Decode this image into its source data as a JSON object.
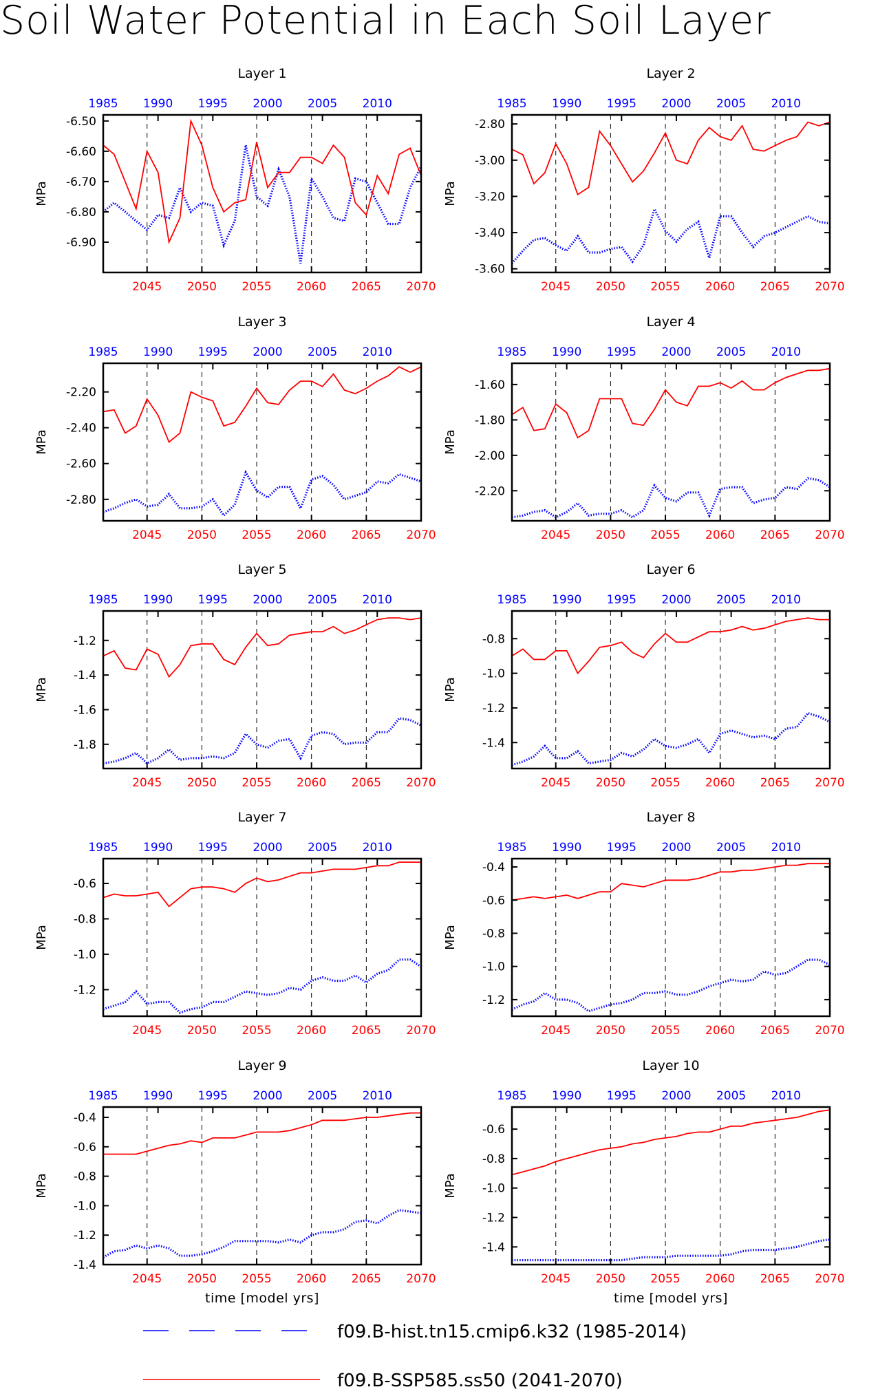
{
  "figure": {
    "title": "Soil Water Potential in Each Soil Layer",
    "xlabel": "time [model yrs]",
    "ylabel": "MPa",
    "colors": {
      "hist": "#0000ff",
      "ssp": "#ff0000",
      "axis": "#000000"
    }
  },
  "legend": [
    {
      "label": "f09.B-hist.tn15.cmip6.k32 (1985-2014)",
      "color": "#0000ff",
      "style": "dashed"
    },
    {
      "label": "f09.B-SSP585.ss50 (2041-2070)",
      "color": "#ff0000",
      "style": "solid"
    }
  ],
  "chart_data": [
    {
      "type": "line",
      "title": "Layer 1",
      "top_xticks": [
        "1985",
        "1990",
        "1995",
        "2000",
        "2005",
        "2010"
      ],
      "bottom_xticks": [
        "2045",
        "2050",
        "2055",
        "2060",
        "2065",
        "2070"
      ],
      "yticks": [
        "-6.50",
        "-6.60",
        "-6.70",
        "-6.80",
        "-6.90"
      ],
      "ylim": [
        -7.0,
        -6.48
      ],
      "series": [
        {
          "key": "hist",
          "x_range": [
            1985,
            2014
          ],
          "values": [
            -6.8,
            -6.77,
            -6.8,
            -6.83,
            -6.86,
            -6.81,
            -6.82,
            -6.72,
            -6.8,
            -6.77,
            -6.78,
            -6.91,
            -6.83,
            -6.58,
            -6.75,
            -6.78,
            -6.66,
            -6.75,
            -6.97,
            -6.69,
            -6.75,
            -6.82,
            -6.83,
            -6.69,
            -6.7,
            -6.77,
            -6.84,
            -6.84,
            -6.72,
            -6.65
          ]
        },
        {
          "key": "ssp",
          "x_range": [
            2041,
            2070
          ],
          "values": [
            -6.58,
            -6.61,
            -6.7,
            -6.79,
            -6.6,
            -6.67,
            -6.9,
            -6.82,
            -6.5,
            -6.58,
            -6.72,
            -6.8,
            -6.77,
            -6.76,
            -6.57,
            -6.72,
            -6.67,
            -6.67,
            -6.62,
            -6.62,
            -6.64,
            -6.58,
            -6.62,
            -6.77,
            -6.81,
            -6.68,
            -6.74,
            -6.61,
            -6.59,
            -6.68
          ]
        }
      ]
    },
    {
      "type": "line",
      "title": "Layer 2",
      "top_xticks": [
        "1985",
        "1990",
        "1995",
        "2000",
        "2005",
        "2010"
      ],
      "bottom_xticks": [
        "2045",
        "2050",
        "2055",
        "2060",
        "2065",
        "2070"
      ],
      "yticks": [
        "-2.80",
        "-3.00",
        "-3.20",
        "-3.40",
        "-3.60"
      ],
      "ylim": [
        -3.62,
        -2.75
      ],
      "series": [
        {
          "key": "hist",
          "x_range": [
            1985,
            2014
          ],
          "values": [
            -3.57,
            -3.5,
            -3.44,
            -3.43,
            -3.47,
            -3.5,
            -3.42,
            -3.51,
            -3.51,
            -3.49,
            -3.48,
            -3.56,
            -3.47,
            -3.27,
            -3.39,
            -3.45,
            -3.38,
            -3.34,
            -3.54,
            -3.31,
            -3.31,
            -3.4,
            -3.48,
            -3.42,
            -3.4,
            -3.37,
            -3.34,
            -3.31,
            -3.34,
            -3.35
          ]
        },
        {
          "key": "ssp",
          "x_range": [
            2041,
            2070
          ],
          "values": [
            -2.94,
            -2.97,
            -3.13,
            -3.07,
            -2.91,
            -3.02,
            -3.19,
            -3.15,
            -2.84,
            -2.92,
            -3.02,
            -3.12,
            -3.06,
            -2.96,
            -2.85,
            -3.0,
            -3.02,
            -2.89,
            -2.82,
            -2.87,
            -2.89,
            -2.81,
            -2.94,
            -2.95,
            -2.92,
            -2.89,
            -2.87,
            -2.79,
            -2.81,
            -2.79
          ]
        }
      ]
    },
    {
      "type": "line",
      "title": "Layer 3",
      "top_xticks": [
        "1985",
        "1990",
        "1995",
        "2000",
        "2005",
        "2010"
      ],
      "bottom_xticks": [
        "2045",
        "2050",
        "2055",
        "2060",
        "2065",
        "2070"
      ],
      "yticks": [
        "-2.20",
        "-2.40",
        "-2.60",
        "-2.80"
      ],
      "ylim": [
        -2.92,
        -2.04
      ],
      "series": [
        {
          "key": "hist",
          "x_range": [
            1985,
            2014
          ],
          "values": [
            -2.87,
            -2.85,
            -2.82,
            -2.8,
            -2.84,
            -2.83,
            -2.77,
            -2.85,
            -2.85,
            -2.84,
            -2.8,
            -2.89,
            -2.83,
            -2.65,
            -2.75,
            -2.79,
            -2.73,
            -2.73,
            -2.85,
            -2.69,
            -2.67,
            -2.72,
            -2.8,
            -2.78,
            -2.76,
            -2.7,
            -2.71,
            -2.66,
            -2.68,
            -2.7
          ]
        },
        {
          "key": "ssp",
          "x_range": [
            2041,
            2070
          ],
          "values": [
            -2.31,
            -2.3,
            -2.43,
            -2.39,
            -2.24,
            -2.33,
            -2.48,
            -2.43,
            -2.2,
            -2.23,
            -2.25,
            -2.39,
            -2.37,
            -2.28,
            -2.18,
            -2.26,
            -2.27,
            -2.19,
            -2.14,
            -2.14,
            -2.17,
            -2.1,
            -2.19,
            -2.21,
            -2.18,
            -2.14,
            -2.11,
            -2.06,
            -2.09,
            -2.06
          ]
        }
      ]
    },
    {
      "type": "line",
      "title": "Layer 4",
      "top_xticks": [
        "1985",
        "1990",
        "1995",
        "2000",
        "2005",
        "2010"
      ],
      "bottom_xticks": [
        "2045",
        "2050",
        "2055",
        "2060",
        "2065",
        "2070"
      ],
      "yticks": [
        "-1.60",
        "-1.80",
        "-2.00",
        "-2.20"
      ],
      "ylim": [
        -2.37,
        -1.48
      ],
      "series": [
        {
          "key": "hist",
          "x_range": [
            1985,
            2014
          ],
          "values": [
            -2.35,
            -2.34,
            -2.32,
            -2.31,
            -2.35,
            -2.32,
            -2.27,
            -2.34,
            -2.33,
            -2.33,
            -2.31,
            -2.35,
            -2.31,
            -2.17,
            -2.24,
            -2.26,
            -2.21,
            -2.21,
            -2.34,
            -2.19,
            -2.18,
            -2.18,
            -2.27,
            -2.25,
            -2.24,
            -2.18,
            -2.19,
            -2.13,
            -2.14,
            -2.18
          ]
        },
        {
          "key": "ssp",
          "x_range": [
            2041,
            2070
          ],
          "values": [
            -1.77,
            -1.73,
            -1.86,
            -1.85,
            -1.71,
            -1.76,
            -1.9,
            -1.86,
            -1.68,
            -1.68,
            -1.68,
            -1.82,
            -1.83,
            -1.74,
            -1.63,
            -1.7,
            -1.72,
            -1.61,
            -1.61,
            -1.59,
            -1.62,
            -1.58,
            -1.63,
            -1.63,
            -1.59,
            -1.56,
            -1.54,
            -1.52,
            -1.52,
            -1.51
          ]
        }
      ]
    },
    {
      "type": "line",
      "title": "Layer 5",
      "top_xticks": [
        "1985",
        "1990",
        "1995",
        "2000",
        "2005",
        "2010"
      ],
      "bottom_xticks": [
        "2045",
        "2050",
        "2055",
        "2060",
        "2065",
        "2070"
      ],
      "yticks": [
        "-1.2",
        "-1.4",
        "-1.6",
        "-1.8"
      ],
      "ylim": [
        -1.94,
        -1.03
      ],
      "series": [
        {
          "key": "hist",
          "x_range": [
            1985,
            2014
          ],
          "values": [
            -1.91,
            -1.9,
            -1.88,
            -1.85,
            -1.91,
            -1.88,
            -1.83,
            -1.89,
            -1.88,
            -1.88,
            -1.87,
            -1.88,
            -1.85,
            -1.74,
            -1.8,
            -1.82,
            -1.78,
            -1.77,
            -1.88,
            -1.75,
            -1.73,
            -1.74,
            -1.8,
            -1.79,
            -1.79,
            -1.73,
            -1.73,
            -1.65,
            -1.66,
            -1.69
          ]
        },
        {
          "key": "ssp",
          "x_range": [
            2041,
            2070
          ],
          "values": [
            -1.29,
            -1.26,
            -1.36,
            -1.37,
            -1.25,
            -1.28,
            -1.41,
            -1.34,
            -1.23,
            -1.22,
            -1.22,
            -1.31,
            -1.34,
            -1.24,
            -1.16,
            -1.23,
            -1.22,
            -1.17,
            -1.16,
            -1.15,
            -1.15,
            -1.12,
            -1.16,
            -1.14,
            -1.11,
            -1.08,
            -1.07,
            -1.07,
            -1.08,
            -1.07
          ]
        }
      ]
    },
    {
      "type": "line",
      "title": "Layer 6",
      "top_xticks": [
        "1985",
        "1990",
        "1995",
        "2000",
        "2005",
        "2010"
      ],
      "bottom_xticks": [
        "2045",
        "2050",
        "2055",
        "2060",
        "2065",
        "2070"
      ],
      "yticks": [
        "-0.8",
        "-1.0",
        "-1.2",
        "-1.4"
      ],
      "ylim": [
        -1.55,
        -0.64
      ],
      "series": [
        {
          "key": "hist",
          "x_range": [
            1985,
            2014
          ],
          "values": [
            -1.53,
            -1.51,
            -1.48,
            -1.42,
            -1.49,
            -1.49,
            -1.45,
            -1.52,
            -1.51,
            -1.5,
            -1.46,
            -1.48,
            -1.44,
            -1.38,
            -1.42,
            -1.43,
            -1.41,
            -1.38,
            -1.46,
            -1.35,
            -1.33,
            -1.35,
            -1.37,
            -1.36,
            -1.38,
            -1.32,
            -1.31,
            -1.23,
            -1.25,
            -1.28
          ]
        },
        {
          "key": "ssp",
          "x_range": [
            2041,
            2070
          ],
          "values": [
            -0.9,
            -0.86,
            -0.92,
            -0.92,
            -0.87,
            -0.87,
            -1.0,
            -0.93,
            -0.85,
            -0.84,
            -0.82,
            -0.88,
            -0.91,
            -0.83,
            -0.77,
            -0.82,
            -0.82,
            -0.79,
            -0.76,
            -0.76,
            -0.75,
            -0.73,
            -0.75,
            -0.74,
            -0.72,
            -0.7,
            -0.69,
            -0.68,
            -0.69,
            -0.69
          ]
        }
      ]
    },
    {
      "type": "line",
      "title": "Layer 7",
      "top_xticks": [
        "1985",
        "1990",
        "1995",
        "2000",
        "2005",
        "2010"
      ],
      "bottom_xticks": [
        "2045",
        "2050",
        "2055",
        "2060",
        "2065",
        "2070"
      ],
      "yticks": [
        "-0.6",
        "-0.8",
        "-1.0",
        "-1.2"
      ],
      "ylim": [
        -1.35,
        -0.46
      ],
      "series": [
        {
          "key": "hist",
          "x_range": [
            1985,
            2014
          ],
          "values": [
            -1.31,
            -1.29,
            -1.27,
            -1.21,
            -1.28,
            -1.27,
            -1.27,
            -1.33,
            -1.31,
            -1.3,
            -1.27,
            -1.27,
            -1.24,
            -1.21,
            -1.22,
            -1.23,
            -1.22,
            -1.19,
            -1.2,
            -1.15,
            -1.13,
            -1.15,
            -1.15,
            -1.12,
            -1.16,
            -1.11,
            -1.09,
            -1.03,
            -1.03,
            -1.07
          ]
        },
        {
          "key": "ssp",
          "x_range": [
            2041,
            2070
          ],
          "values": [
            -0.68,
            -0.66,
            -0.67,
            -0.67,
            -0.66,
            -0.65,
            -0.73,
            -0.68,
            -0.63,
            -0.62,
            -0.62,
            -0.63,
            -0.65,
            -0.6,
            -0.57,
            -0.59,
            -0.58,
            -0.56,
            -0.54,
            -0.54,
            -0.53,
            -0.52,
            -0.52,
            -0.52,
            -0.51,
            -0.5,
            -0.5,
            -0.48,
            -0.48,
            -0.48
          ]
        }
      ]
    },
    {
      "type": "line",
      "title": "Layer 8",
      "top_xticks": [
        "1985",
        "1990",
        "1995",
        "2000",
        "2005",
        "2010"
      ],
      "bottom_xticks": [
        "2045",
        "2050",
        "2055",
        "2060",
        "2065",
        "2070"
      ],
      "yticks": [
        "-0.4",
        "-0.6",
        "-0.8",
        "-1.0",
        "-1.2"
      ],
      "ylim": [
        -1.3,
        -0.35
      ],
      "series": [
        {
          "key": "hist",
          "x_range": [
            1985,
            2014
          ],
          "values": [
            -1.26,
            -1.23,
            -1.21,
            -1.16,
            -1.2,
            -1.2,
            -1.22,
            -1.27,
            -1.25,
            -1.23,
            -1.22,
            -1.2,
            -1.16,
            -1.16,
            -1.15,
            -1.17,
            -1.17,
            -1.15,
            -1.12,
            -1.1,
            -1.08,
            -1.09,
            -1.08,
            -1.03,
            -1.05,
            -1.04,
            -1.0,
            -0.96,
            -0.96,
            -0.99
          ]
        },
        {
          "key": "ssp",
          "x_range": [
            2041,
            2070
          ],
          "values": [
            -0.6,
            -0.59,
            -0.58,
            -0.59,
            -0.58,
            -0.57,
            -0.59,
            -0.57,
            -0.55,
            -0.55,
            -0.5,
            -0.51,
            -0.52,
            -0.5,
            -0.48,
            -0.48,
            -0.48,
            -0.47,
            -0.45,
            -0.43,
            -0.43,
            -0.42,
            -0.42,
            -0.41,
            -0.4,
            -0.39,
            -0.39,
            -0.38,
            -0.38,
            -0.38
          ]
        }
      ]
    },
    {
      "type": "line",
      "title": "Layer 9",
      "top_xticks": [
        "1985",
        "1990",
        "1995",
        "2000",
        "2005",
        "2010"
      ],
      "bottom_xticks": [
        "2045",
        "2050",
        "2055",
        "2060",
        "2065",
        "2070"
      ],
      "yticks": [
        "-0.4",
        "-0.6",
        "-0.8",
        "-1.0",
        "-1.2",
        "-1.4"
      ],
      "ylim": [
        -1.4,
        -0.33
      ],
      "series": [
        {
          "key": "hist",
          "x_range": [
            1985,
            2014
          ],
          "values": [
            -1.35,
            -1.31,
            -1.3,
            -1.27,
            -1.29,
            -1.27,
            -1.29,
            -1.34,
            -1.34,
            -1.33,
            -1.31,
            -1.28,
            -1.24,
            -1.24,
            -1.24,
            -1.24,
            -1.25,
            -1.23,
            -1.25,
            -1.2,
            -1.18,
            -1.18,
            -1.16,
            -1.11,
            -1.1,
            -1.12,
            -1.07,
            -1.03,
            -1.04,
            -1.05
          ]
        },
        {
          "key": "ssp",
          "x_range": [
            2041,
            2070
          ],
          "values": [
            -0.65,
            -0.65,
            -0.65,
            -0.65,
            -0.63,
            -0.61,
            -0.59,
            -0.58,
            -0.56,
            -0.57,
            -0.54,
            -0.54,
            -0.54,
            -0.52,
            -0.5,
            -0.5,
            -0.5,
            -0.49,
            -0.47,
            -0.45,
            -0.42,
            -0.42,
            -0.42,
            -0.41,
            -0.4,
            -0.4,
            -0.39,
            -0.38,
            -0.37,
            -0.37
          ]
        }
      ]
    },
    {
      "type": "line",
      "title": "Layer 10",
      "top_xticks": [
        "1985",
        "1990",
        "1995",
        "2000",
        "2005",
        "2010"
      ],
      "bottom_xticks": [
        "2045",
        "2050",
        "2055",
        "2060",
        "2065",
        "2070"
      ],
      "yticks": [
        "-0.6",
        "-0.8",
        "-1.0",
        "-1.2",
        "-1.4"
      ],
      "ylim": [
        -1.52,
        -0.45
      ],
      "series": [
        {
          "key": "hist",
          "x_range": [
            1985,
            2014
          ],
          "values": [
            -1.49,
            -1.49,
            -1.49,
            -1.49,
            -1.49,
            -1.49,
            -1.49,
            -1.49,
            -1.49,
            -1.49,
            -1.49,
            -1.48,
            -1.47,
            -1.47,
            -1.47,
            -1.46,
            -1.46,
            -1.46,
            -1.46,
            -1.46,
            -1.45,
            -1.43,
            -1.42,
            -1.42,
            -1.42,
            -1.41,
            -1.4,
            -1.38,
            -1.36,
            -1.35
          ]
        },
        {
          "key": "ssp",
          "x_range": [
            2041,
            2070
          ],
          "values": [
            -0.91,
            -0.89,
            -0.87,
            -0.85,
            -0.82,
            -0.8,
            -0.78,
            -0.76,
            -0.74,
            -0.73,
            -0.72,
            -0.7,
            -0.69,
            -0.67,
            -0.66,
            -0.65,
            -0.63,
            -0.62,
            -0.62,
            -0.6,
            -0.58,
            -0.58,
            -0.56,
            -0.55,
            -0.54,
            -0.53,
            -0.52,
            -0.5,
            -0.48,
            -0.47
          ]
        }
      ]
    }
  ]
}
